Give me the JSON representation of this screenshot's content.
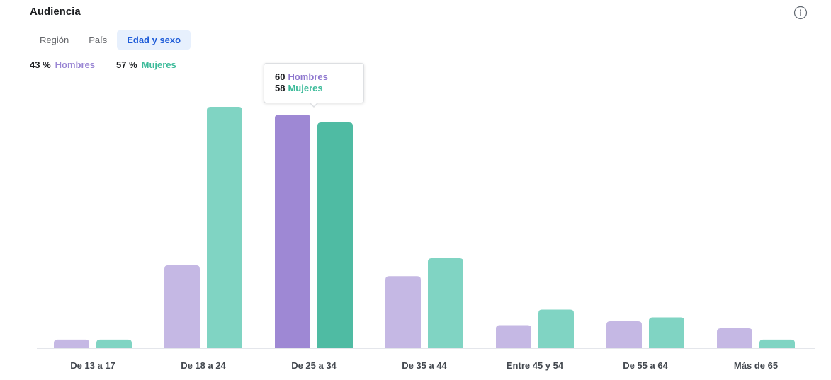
{
  "header": {
    "title": "Audiencia",
    "info_icon": "info-icon"
  },
  "tabs": [
    {
      "label": "Región",
      "active": false
    },
    {
      "label": "País",
      "active": false
    },
    {
      "label": "Edad y sexo",
      "active": true
    }
  ],
  "summary": {
    "men_pct": "43 %",
    "men_label": "Hombres",
    "women_pct": "57 %",
    "women_label": "Mujeres"
  },
  "tooltip": {
    "men_value": "60",
    "men_label": "Hombres",
    "women_value": "58",
    "women_label": "Mujeres"
  },
  "colors": {
    "men": "#c5b8e4",
    "women": "#80d4c3",
    "men_active": "#9e88d4",
    "women_active": "#4fbba3",
    "accent": "#1d5bd8"
  },
  "chart_data": {
    "type": "bar",
    "categories": [
      "De 13 a 17",
      "De 18 a 24",
      "De 25 a 34",
      "De 35 a 44",
      "Entre 45 y 54",
      "De 55 a 64",
      "Más de 65"
    ],
    "series": [
      {
        "name": "Hombres",
        "values": [
          2.2,
          21.3,
          60,
          18.5,
          5.9,
          6.9,
          5.1
        ]
      },
      {
        "name": "Mujeres",
        "values": [
          2.2,
          62,
          58,
          23.1,
          9.9,
          7.9,
          2.2
        ]
      }
    ],
    "highlight_index": 2,
    "ylim": [
      0,
      64
    ],
    "grid": false,
    "legend": "none"
  }
}
